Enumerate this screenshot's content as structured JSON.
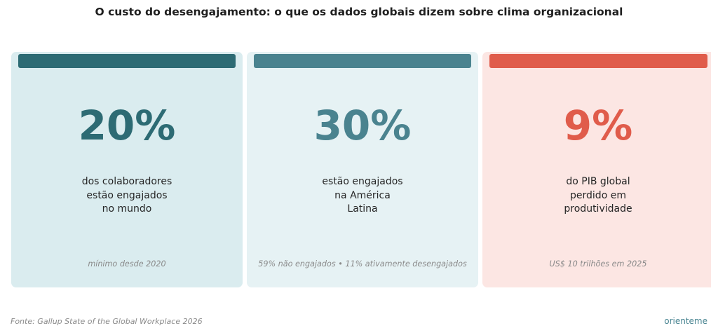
{
  "title": "O custo do desengajamento: o que os dados globais dizem sobre clima organizacional",
  "cards": [
    {
      "value": "20%",
      "desc": [
        "dos colaboradores",
        "estão engajados",
        "no mundo"
      ],
      "note": "mínimo desde 2020",
      "accent": "#2d6b74",
      "background": "#daecef"
    },
    {
      "value": "30%",
      "desc": [
        "estão engajados",
        "na América",
        "Latina"
      ],
      "note": "59% não engajados • 11% ativamente desengajados",
      "accent": "#4a838f",
      "background": "#e6f2f4"
    },
    {
      "value": "9%",
      "desc": [
        "do PIB global",
        "perdido em",
        "produtividade"
      ],
      "note": "US$ 10 trilhões em 2025",
      "accent": "#e05c4b",
      "background": "#fce6e3"
    }
  ],
  "footer": {
    "source": "Fonte: Gallup State of the Global Workplace 2026",
    "brand": "orienteme"
  },
  "chart_data": {
    "type": "table",
    "title": "O custo do desengajamento: o que os dados globais dizem sobre clima organizacional",
    "categories": [
      "dos colaboradores estão engajados no mundo",
      "estão engajados na América Latina",
      "do PIB global perdido em produtividade"
    ],
    "values": [
      20,
      30,
      9
    ],
    "unit": "%"
  }
}
